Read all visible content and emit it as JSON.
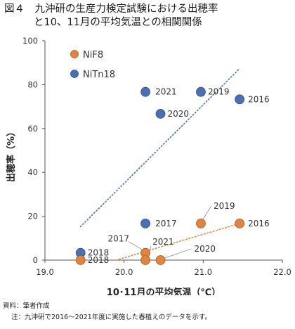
{
  "title": {
    "line1": "図４　九沖研の生産力検定試験における出穂率",
    "line2": "と10、11月の平均気温との相関関係"
  },
  "colors": {
    "NiF8": "#e0853e",
    "NiTn18": "#4a6fb5",
    "NiF8_edge": "#b05a1e",
    "NiTn18_edge": "#2d4f8f"
  },
  "chart_data": {
    "type": "scatter",
    "xlabel": "10･11月の平均気温（℃）",
    "ylabel": "出穂率（%）",
    "xlim": [
      19.0,
      22.0
    ],
    "ylim": [
      0,
      100
    ],
    "xticks": [
      "19.0",
      "20.0",
      "21.0",
      "22.0"
    ],
    "yticks": [
      "0",
      "20",
      "40",
      "60",
      "80",
      "100"
    ],
    "grid": false,
    "legend": "top-left",
    "series": [
      {
        "name": "NiF8",
        "points": [
          {
            "x": 19.45,
            "y": 0,
            "label": "2018"
          },
          {
            "x": 20.27,
            "y": 3.3,
            "label": "2017"
          },
          {
            "x": 20.27,
            "y": 0,
            "label": "2021"
          },
          {
            "x": 20.46,
            "y": 0,
            "label": "2020"
          },
          {
            "x": 20.97,
            "y": 16.7,
            "label": "2019"
          },
          {
            "x": 21.46,
            "y": 16.7,
            "label": "2016"
          }
        ],
        "trendline": {
          "x": [
            19.9,
            21.46
          ],
          "y": [
            0,
            16.7
          ]
        }
      },
      {
        "name": "NiTn18",
        "points": [
          {
            "x": 19.45,
            "y": 3.3,
            "label": "2018"
          },
          {
            "x": 20.27,
            "y": 16.7,
            "label": "2017"
          },
          {
            "x": 20.27,
            "y": 76.7,
            "label": "2021"
          },
          {
            "x": 20.46,
            "y": 66.7,
            "label": "2020"
          },
          {
            "x": 20.97,
            "y": 76.7,
            "label": "2019"
          },
          {
            "x": 21.46,
            "y": 73.3,
            "label": "2016"
          }
        ],
        "trendline": {
          "x": [
            19.45,
            21.46
          ],
          "y": [
            15.3,
            87.3
          ]
        }
      }
    ]
  },
  "footer": {
    "source": "資料：筆者作成",
    "note": "注：九沖研で2016～2021年度に実施した春植えのデータを示す。"
  }
}
